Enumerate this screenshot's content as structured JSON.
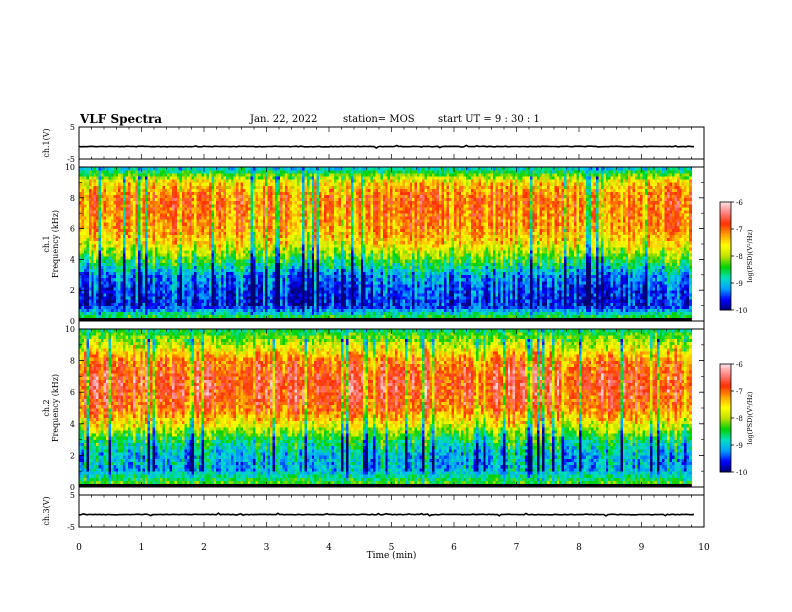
{
  "header": {
    "title": "VLF Spectra",
    "date": "Jan. 22, 2022",
    "station": "station= MOS",
    "start_ut": "start UT =  9 : 30 : 1"
  },
  "chart_data": [
    {
      "type": "line",
      "panel": "ch1-waveform",
      "ylabel": "ch.1(V)",
      "ylim": [
        -5,
        5
      ],
      "yticks": [
        "5",
        "-5"
      ],
      "xlim": [
        0,
        10
      ],
      "series": [
        {
          "values": [
            -1.1,
            -1.1
          ]
        }
      ]
    },
    {
      "type": "heatmap",
      "panel": "ch1-spectrogram",
      "ylabel": "ch.1\nFrequency (kHz)",
      "ylim": [
        0,
        10
      ],
      "yticks": [
        "0",
        "2",
        "4",
        "6",
        "8",
        "10"
      ],
      "xlim": [
        0,
        9.8
      ],
      "frequency_kHz": [
        0,
        1,
        2,
        3,
        4,
        5,
        6,
        7,
        8,
        9,
        10
      ],
      "typical_logPSD": [
        -8.0,
        -9.6,
        -9.5,
        -9.2,
        -8.4,
        -7.6,
        -7.2,
        -7.1,
        -7.0,
        -7.5,
        -9.0
      ],
      "colorbar": {
        "label": "log(PSD)(V²/Hz)",
        "range": [
          -10,
          -6
        ],
        "ticks": [
          "-6",
          "-7",
          "-8",
          "-9",
          "-10"
        ]
      }
    },
    {
      "type": "heatmap",
      "panel": "ch2-spectrogram",
      "ylabel": "ch.2\nFrequency (kHz)",
      "ylim": [
        0,
        10
      ],
      "yticks": [
        "0",
        "2",
        "4",
        "6",
        "8",
        "10"
      ],
      "xlim": [
        0,
        9.8
      ],
      "frequency_kHz": [
        0,
        1,
        2,
        3,
        4,
        5,
        6,
        7,
        8,
        9,
        10
      ],
      "typical_logPSD": [
        -8.0,
        -9.0,
        -9.0,
        -8.5,
        -7.6,
        -6.9,
        -6.7,
        -6.7,
        -7.0,
        -7.8,
        -8.6
      ],
      "colorbar": {
        "label": "log(PSD)(V²/Hz)",
        "range": [
          -10,
          -6
        ],
        "ticks": [
          "-6",
          "-7",
          "-8",
          "-9",
          "-10"
        ]
      }
    },
    {
      "type": "line",
      "panel": "ch3-waveform",
      "ylabel": "ch.3(V)",
      "ylim": [
        -5,
        5
      ],
      "yticks": [
        "5",
        "-5"
      ],
      "xlim": [
        0,
        10
      ],
      "series": [
        {
          "values": [
            -1.1,
            -1.1
          ]
        }
      ]
    }
  ],
  "xaxis": {
    "label": "Time (min)",
    "ticks": [
      "0",
      "1",
      "2",
      "3",
      "4",
      "5",
      "6",
      "7",
      "8",
      "9",
      "10"
    ]
  },
  "colors": {
    "colormap": [
      "#000070",
      "#0000ff",
      "#00a0ff",
      "#00e0c0",
      "#00d000",
      "#c0e000",
      "#ffff00",
      "#ffa000",
      "#ff3000",
      "#ff8080",
      "#ffe0e0"
    ],
    "background": "#ffffff",
    "axes": "#000000"
  }
}
